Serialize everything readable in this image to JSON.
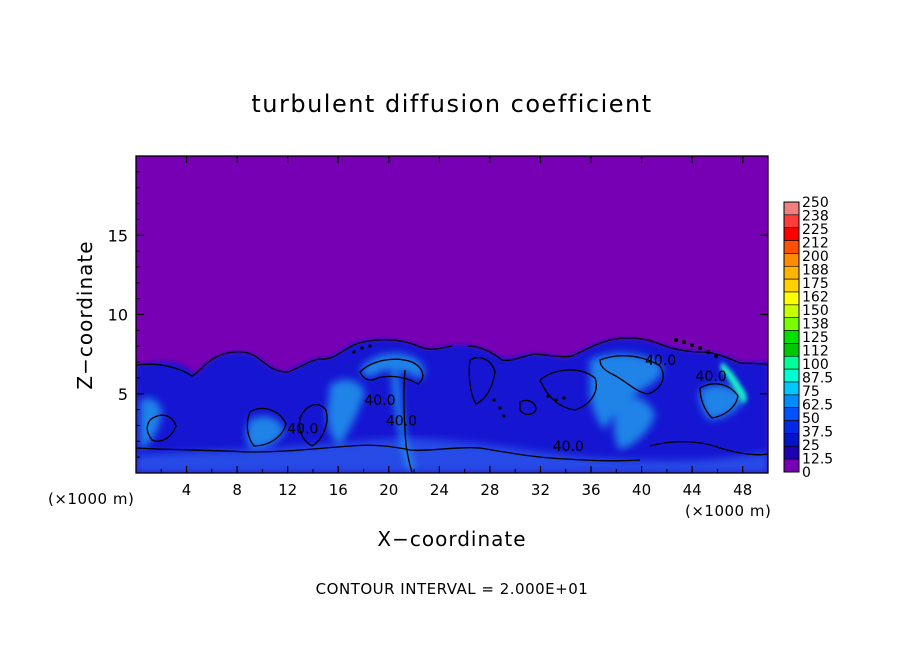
{
  "chart_data": {
    "type": "heatmap",
    "title": "turbulent diffusion coefficient",
    "xlabel": "X−coordinate",
    "ylabel": "Z−coordinate",
    "x_unit_left": "(×1000 m)",
    "x_unit_right": "(×1000 m)",
    "footer": "CONTOUR INTERVAL = 2.000E+01",
    "xlim": [
      0,
      50
    ],
    "ylim": [
      0,
      20
    ],
    "xticks": [
      "4",
      "8",
      "12",
      "16",
      "20",
      "24",
      "28",
      "32",
      "36",
      "40",
      "44",
      "48"
    ],
    "yticks": [
      "5",
      "10",
      "15"
    ],
    "colorbar": {
      "labels": [
        "250",
        "238",
        "225",
        "212",
        "200",
        "188",
        "175",
        "162",
        "150",
        "138",
        "125",
        "112",
        "100",
        "87.5",
        "75",
        "62.5",
        "50",
        "37.5",
        "25",
        "12.5",
        "0"
      ],
      "colors": [
        "#f08080",
        "#ff3c3c",
        "#ff0000",
        "#ff5000",
        "#ff8c00",
        "#ffb400",
        "#ffd200",
        "#ffff00",
        "#c8ff00",
        "#78ff00",
        "#00e100",
        "#00c800",
        "#00ff96",
        "#00ffd2",
        "#00c8ff",
        "#008cff",
        "#0050ff",
        "#0028e6",
        "#0014c8",
        "#1e00b4",
        "#7800b4"
      ]
    },
    "contour_labels": [
      {
        "text": "40.0",
        "x": 41.5,
        "z": 6.8
      },
      {
        "text": "40.0",
        "x": 45.5,
        "z": 5.8
      },
      {
        "text": "40.0",
        "x": 34.2,
        "z": 1.4
      },
      {
        "text": "40.0",
        "x": 19.3,
        "z": 4.3
      },
      {
        "text": "40.0",
        "x": 13.2,
        "z": 2.5
      },
      {
        "text": "40.0",
        "x": 21.0,
        "z": 3.0
      }
    ]
  }
}
